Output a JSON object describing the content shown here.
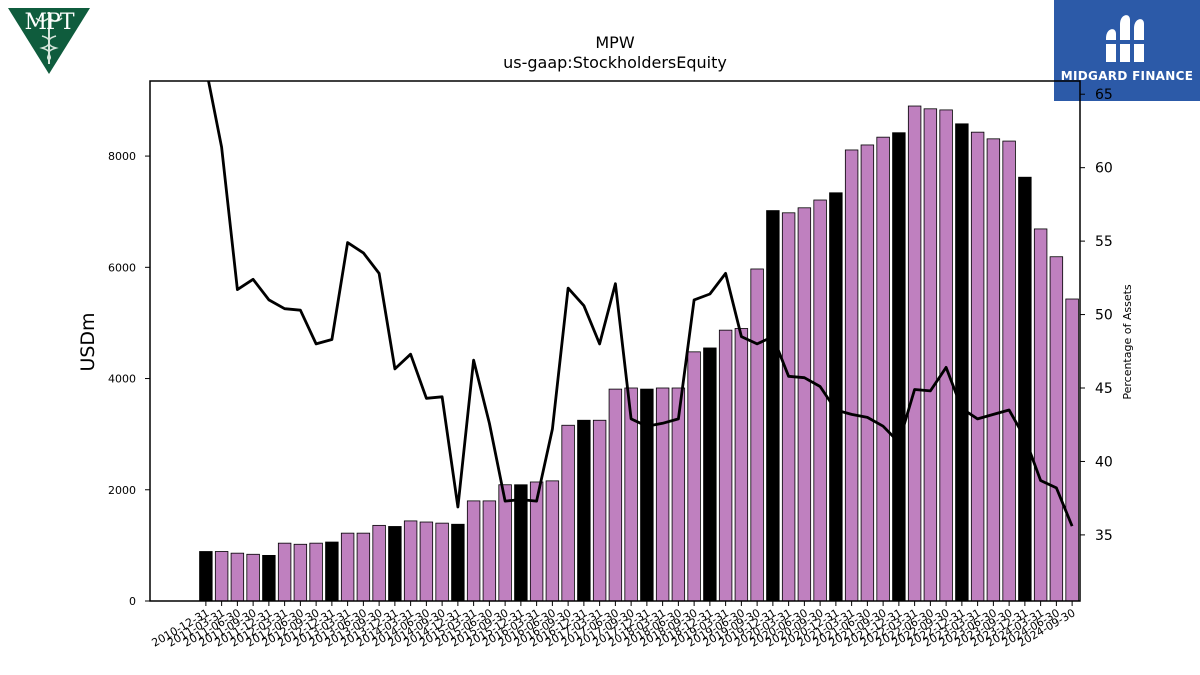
{
  "header": {
    "ticker": "MPW",
    "metric": "us-gaap:StockholdersEquity"
  },
  "logos": {
    "left": {
      "text": "MPT",
      "icon": "caduceus-icon",
      "color": "#0f5c3d"
    },
    "right": {
      "text": "MIDGARD FINANCE",
      "icon": "midgard-mark-icon",
      "color": "#2c5aa8"
    }
  },
  "chart_data": {
    "type": "bar",
    "title": "MPW\nus-gaap:StockholdersEquity",
    "ylabel": "USDm",
    "y2label": "Percentage of Assets",
    "ylim": [
      0,
      9350
    ],
    "y2lim": [
      30.5,
      65.9
    ],
    "yticks": [
      0,
      2000,
      4000,
      6000,
      8000
    ],
    "y2ticks": [
      35,
      40,
      45,
      50,
      55,
      60,
      65
    ],
    "grid": false,
    "colors": {
      "annual": "#000000",
      "quarterly": "#bf80bf",
      "line": "#000000"
    },
    "categories": [
      "2010-12-31",
      "2011-03-31",
      "2011-06-30",
      "2011-09-30",
      "2011-12-31",
      "2012-03-31",
      "2012-06-30",
      "2012-09-30",
      "2012-12-31",
      "2013-03-31",
      "2013-06-30",
      "2013-09-30",
      "2013-12-31",
      "2014-03-31",
      "2014-06-30",
      "2014-09-30",
      "2014-12-31",
      "2015-03-31",
      "2015-06-30",
      "2015-09-30",
      "2015-12-31",
      "2016-03-31",
      "2016-06-30",
      "2016-09-30",
      "2016-12-31",
      "2017-03-31",
      "2017-06-30",
      "2017-09-30",
      "2017-12-31",
      "2018-03-31",
      "2018-06-30",
      "2018-09-30",
      "2018-12-31",
      "2019-03-31",
      "2019-06-30",
      "2019-09-30",
      "2019-12-31",
      "2020-03-31",
      "2020-06-30",
      "2020-09-30",
      "2020-12-31",
      "2021-03-31",
      "2021-06-30",
      "2021-09-30",
      "2021-12-31",
      "2022-03-31",
      "2022-06-30",
      "2022-09-30",
      "2022-12-31",
      "2023-03-31",
      "2023-06-30",
      "2023-09-30",
      "2023-12-31",
      "2024-03-31",
      "2024-06-30",
      "2024-09-30"
    ],
    "values": [
      890,
      890,
      860,
      840,
      820,
      1040,
      1020,
      1040,
      1060,
      1220,
      1220,
      1360,
      1340,
      1440,
      1420,
      1400,
      1380,
      1800,
      1800,
      2090,
      2090,
      2140,
      2160,
      3160,
      3250,
      3250,
      3810,
      3830,
      3810,
      3830,
      3830,
      4480,
      4550,
      4870,
      4900,
      5970,
      7020,
      6980,
      7070,
      7210,
      7340,
      8110,
      8200,
      8340,
      8420,
      8900,
      8850,
      8830,
      8580,
      8430,
      8310,
      8270,
      7620,
      6690,
      6190,
      5430
    ],
    "annual": [
      true,
      false,
      false,
      false,
      true,
      false,
      false,
      false,
      true,
      false,
      false,
      false,
      true,
      false,
      false,
      false,
      true,
      false,
      false,
      false,
      true,
      false,
      false,
      false,
      true,
      false,
      false,
      false,
      true,
      false,
      false,
      false,
      true,
      false,
      false,
      false,
      true,
      false,
      false,
      false,
      true,
      false,
      false,
      false,
      true,
      false,
      false,
      false,
      true,
      false,
      false,
      false,
      true,
      false,
      false,
      false
    ],
    "pct_assets": [
      66.8,
      61.4,
      51.7,
      52.4,
      51.0,
      50.4,
      50.3,
      48.0,
      48.3,
      54.9,
      54.2,
      52.8,
      46.3,
      47.3,
      44.3,
      44.4,
      36.9,
      46.9,
      42.6,
      37.3,
      37.4,
      37.3,
      42.2,
      51.8,
      50.6,
      48.0,
      52.1,
      42.9,
      42.4,
      42.6,
      42.9,
      51.0,
      51.4,
      52.8,
      48.5,
      48.0,
      48.5,
      45.8,
      45.7,
      45.1,
      43.5,
      43.2,
      43.0,
      42.4,
      41.3,
      44.9,
      44.8,
      46.4,
      43.6,
      42.9,
      43.2,
      43.5,
      41.6,
      38.7,
      38.2,
      35.6
    ]
  }
}
